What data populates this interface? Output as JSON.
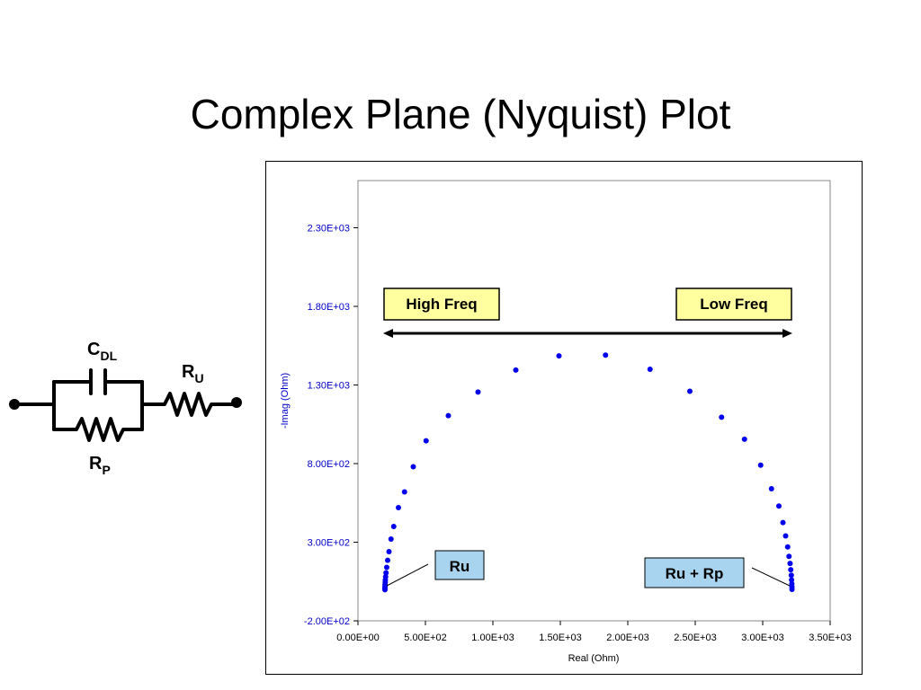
{
  "slide": {
    "title": "Complex Plane (Nyquist) Plot"
  },
  "circuit": {
    "cdl_main": "C",
    "cdl_sub": "DL",
    "ru_main": "R",
    "ru_sub": "U",
    "rp_main": "R",
    "rp_sub": "P"
  },
  "colors": {
    "series": "#0000ee",
    "axis_text": "#0000cc",
    "highfreq_box": "#ffffa0",
    "ru_box": "#a8d4f0"
  },
  "chart_data": {
    "type": "scatter",
    "title": "",
    "xlabel": "Real (Ohm)",
    "ylabel": "-Imag (Ohm)",
    "xlim": [
      0,
      3500
    ],
    "ylim": [
      -200,
      2600
    ],
    "x_ticks": [
      0,
      500,
      1000,
      1500,
      2000,
      2500,
      3000,
      3500
    ],
    "x_tick_labels": [
      "0.00E+00",
      "5.00E+02",
      "1.00E+03",
      "1.50E+03",
      "2.00E+03",
      "2.50E+03",
      "3.00E+03",
      "3.50E+03"
    ],
    "y_ticks": [
      -200,
      300,
      800,
      1300,
      1800,
      2300
    ],
    "y_tick_labels": [
      "-2.00E+02",
      "3.00E+02",
      "8.00E+02",
      "1.30E+03",
      "1.80E+03",
      "2.30E+03"
    ],
    "grid": false,
    "legend": "none",
    "series": [
      {
        "x": [
          200,
          200,
          200,
          201,
          201,
          202,
          203,
          205,
          208,
          213,
          220,
          230,
          245,
          265,
          300,
          345,
          410,
          505,
          670,
          890,
          1170,
          1490,
          1835,
          2165,
          2460,
          2695,
          2865,
          2985,
          3065,
          3120,
          3150,
          3170,
          3185,
          3195,
          3203,
          3208,
          3212,
          3214,
          3216,
          3217,
          3217
        ],
        "y": [
          -2,
          5,
          12,
          20,
          30,
          45,
          60,
          80,
          105,
          140,
          185,
          240,
          320,
          400,
          520,
          620,
          780,
          945,
          1105,
          1255,
          1395,
          1485,
          1490,
          1400,
          1260,
          1095,
          955,
          790,
          640,
          530,
          425,
          340,
          270,
          210,
          165,
          125,
          90,
          60,
          35,
          15,
          0
        ]
      }
    ],
    "annotations": {
      "high_freq": "High Freq",
      "low_freq": "Low Freq",
      "ru": "Ru",
      "ru_rp": "Ru + Rp"
    }
  }
}
